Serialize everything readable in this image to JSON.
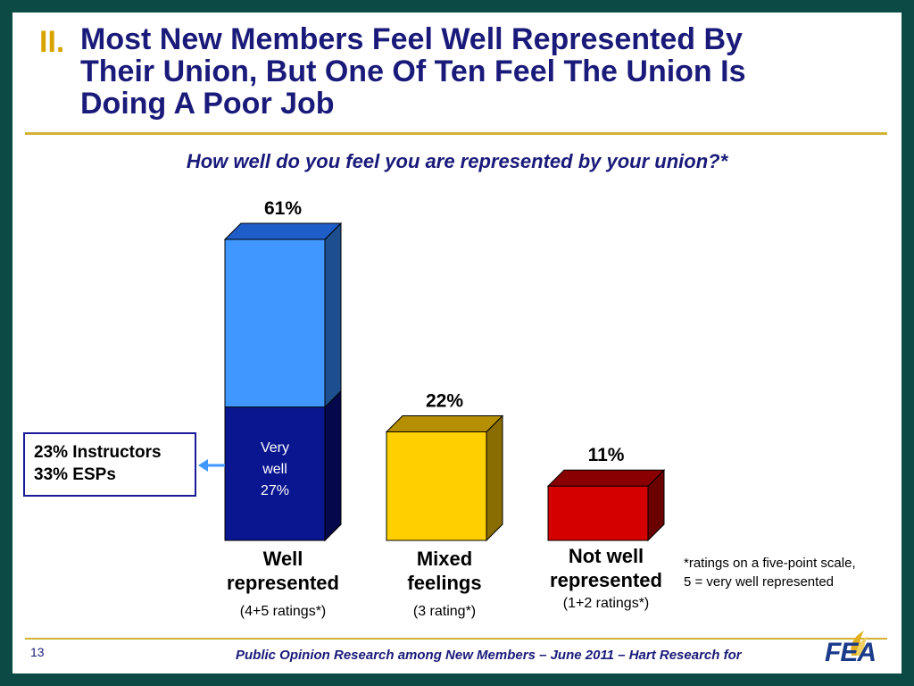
{
  "header": {
    "number": "II.",
    "title_lines": [
      "Most New Members Feel Well Represented By",
      "Their Union, But One Of Ten Feel The Union Is",
      "Doing A Poor Job"
    ]
  },
  "question": "How well do you feel you are represented by your union?*",
  "callout": {
    "line1": "23% Instructors",
    "line2": "33% ESPs"
  },
  "footnote": {
    "line1": "*ratings on a five-point scale,",
    "line2": "5 = very well represented"
  },
  "footer": {
    "page": "13",
    "text": "Public Opinion Research among New Members – June 2011 – Hart Research for"
  },
  "logo": {
    "text": "FEA"
  },
  "colors": {
    "title": "#1a1a7a",
    "number": "#d9a400",
    "well_light": "#3f97ff",
    "well_dark": "#0a1690",
    "mixed": "#ffd000",
    "not_well": "#d40000",
    "frame": "#0b4a45"
  },
  "chart_data": {
    "type": "bar",
    "categories": [
      "Well represented",
      "Mixed feelings",
      "Not well represented"
    ],
    "values": [
      61,
      22,
      11
    ],
    "value_labels": [
      "61%",
      "22%",
      "11%"
    ],
    "sub_labels": [
      "(4+5 ratings*)",
      "(3 rating*)",
      "(1+2 ratings*)"
    ],
    "segment": {
      "category": "Well represented",
      "value": 27,
      "label_lines": [
        "Very",
        "well",
        "27%"
      ]
    },
    "ylim": [
      0,
      61
    ]
  }
}
